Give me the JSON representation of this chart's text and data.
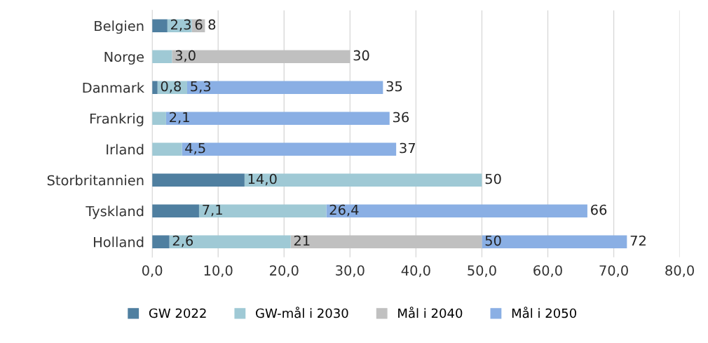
{
  "chart_data": {
    "type": "bar",
    "orientation": "horizontal",
    "stacked": true,
    "categories": [
      "Belgien",
      "Norge",
      "Danmark",
      "Frankrig",
      "Irland",
      "Storbritannien",
      "Tyskland",
      "Holland"
    ],
    "series": [
      {
        "name": "GW 2022",
        "color": "#4f7fa0",
        "values": [
          2.3,
          null,
          0.8,
          null,
          null,
          14.0,
          7.1,
          2.6
        ],
        "value_labels": [
          "2,3",
          null,
          "0,8",
          null,
          null,
          "14,0",
          "7,1",
          "2,6"
        ]
      },
      {
        "name": "GW-mål i 2030",
        "color": "#9fc9d5",
        "values": [
          3.7,
          3.0,
          4.5,
          2.1,
          4.5,
          36,
          19.3,
          18.4
        ]
      },
      {
        "name": "Mål i 2040",
        "color": "#c0c0c0",
        "values": [
          2,
          27,
          null,
          null,
          null,
          null,
          null,
          29
        ]
      },
      {
        "name": "Mål i 2050",
        "color": "#8aafe4",
        "values": [
          null,
          null,
          29.7,
          33.9,
          32.5,
          null,
          39.6,
          22
        ]
      }
    ],
    "annotations": [
      {
        "text": "6",
        "x": 6,
        "y": "Belgien"
      },
      {
        "text": "8",
        "x": 8,
        "y": "Belgien"
      },
      {
        "text": "3,0",
        "x": 3.0,
        "y": "Norge"
      },
      {
        "text": "30",
        "x": 30,
        "y": "Norge"
      },
      {
        "text": "5,3",
        "x": 5.3,
        "y": "Danmark"
      },
      {
        "text": "35",
        "x": 35,
        "y": "Danmark"
      },
      {
        "text": "2,1",
        "x": 2.1,
        "y": "Frankrig"
      },
      {
        "text": "36",
        "x": 36,
        "y": "Frankrig"
      },
      {
        "text": "4,5",
        "x": 4.5,
        "y": "Irland"
      },
      {
        "text": "37",
        "x": 37,
        "y": "Irland"
      },
      {
        "text": "50",
        "x": 50,
        "y": "Storbritannien"
      },
      {
        "text": "26,4",
        "x": 26.4,
        "y": "Tyskland"
      },
      {
        "text": "66",
        "x": 66,
        "y": "Tyskland"
      },
      {
        "text": "21",
        "x": 21,
        "y": "Holland"
      },
      {
        "text": "50",
        "x": 50,
        "y": "Holland"
      },
      {
        "text": "72",
        "x": 72,
        "y": "Holland"
      }
    ],
    "xlim": [
      0,
      80
    ],
    "xticks": [
      {
        "value": 0,
        "label": "0,0"
      },
      {
        "value": 10,
        "label": "10,0"
      },
      {
        "value": 20,
        "label": "20,0"
      },
      {
        "value": 30,
        "label": "30,0"
      },
      {
        "value": 40,
        "label": "40,0"
      },
      {
        "value": 50,
        "label": "50,0"
      },
      {
        "value": 60,
        "label": "60,0"
      },
      {
        "value": 70,
        "label": "70,0"
      },
      {
        "value": 80,
        "label": "80,0"
      }
    ],
    "grid": "x",
    "legend": "bottom"
  }
}
